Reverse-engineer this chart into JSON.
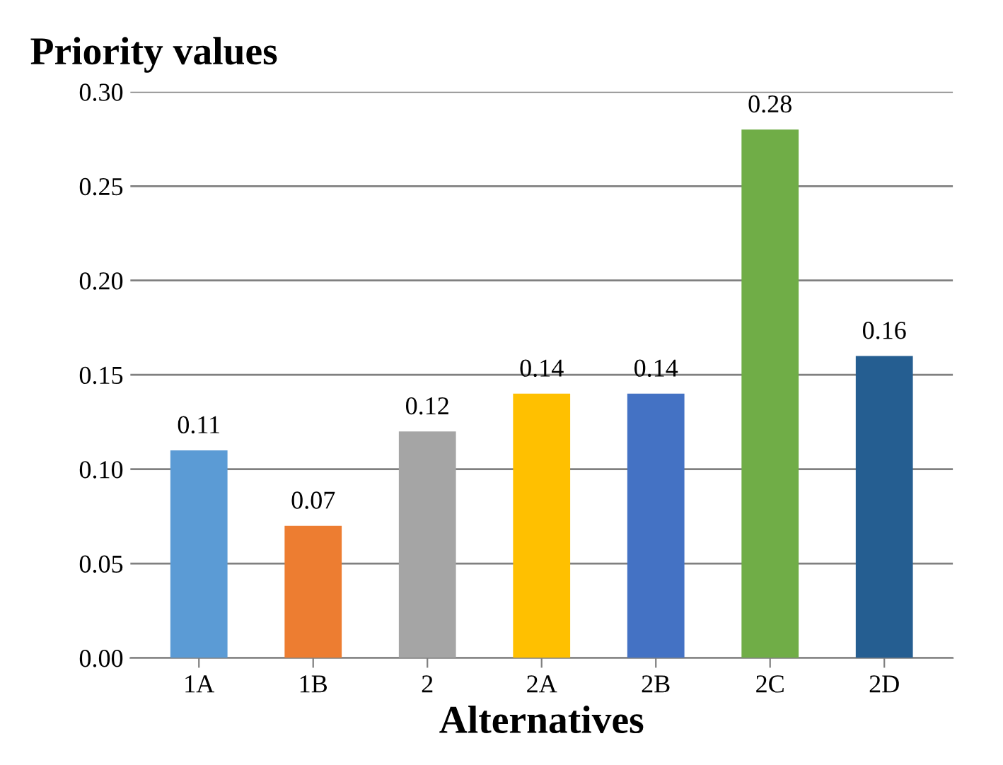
{
  "chart_data": {
    "type": "bar",
    "ylabel": "Priority values",
    "xlabel": "Alternatives",
    "categories": [
      "1A",
      "1B",
      "2",
      "2A",
      "2B",
      "2C",
      "2D"
    ],
    "values": [
      0.11,
      0.07,
      0.12,
      0.14,
      0.14,
      0.28,
      0.16
    ],
    "colors": [
      "#5b9bd5",
      "#ed7d31",
      "#a5a5a5",
      "#ffc000",
      "#4472c4",
      "#70ad47",
      "#255e91"
    ],
    "data_labels": true,
    "ylim": [
      0,
      0.3
    ],
    "yticks": [
      {
        "value": 0,
        "label": "0.00"
      },
      {
        "value": 0.05,
        "label": "0.05"
      },
      {
        "value": 0.1,
        "label": "0.10"
      },
      {
        "value": 0.15,
        "label": "0.15"
      },
      {
        "value": 0.2,
        "label": "0.20"
      },
      {
        "value": 0.25,
        "label": "0.25"
      },
      {
        "value": 0.3,
        "label": "0.30"
      }
    ],
    "grid": "y"
  }
}
